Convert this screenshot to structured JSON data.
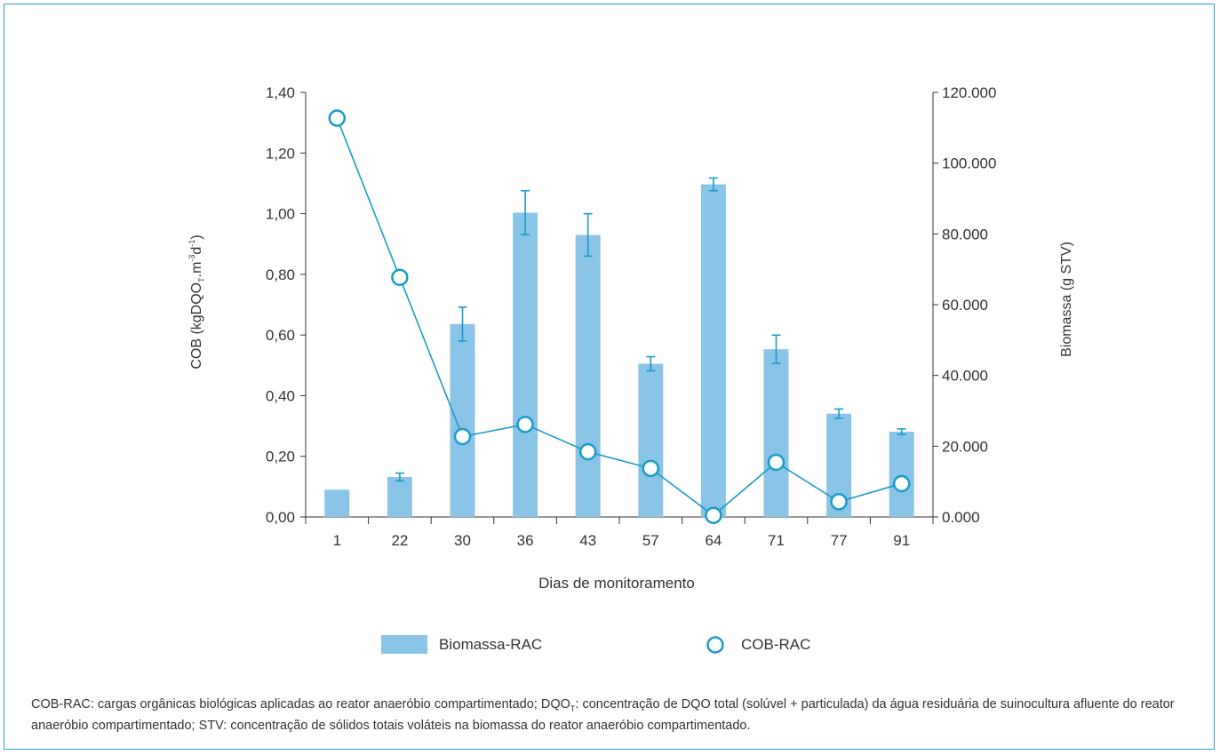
{
  "chart_data": {
    "type": "bar+line",
    "categories": [
      "1",
      "22",
      "30",
      "36",
      "43",
      "57",
      "64",
      "71",
      "77",
      "91"
    ],
    "xlabel": "Dias de monitoramento",
    "ylabel_left_main": "COB (kgDQO",
    "ylabel_left_sub": "T",
    "ylabel_left_mid": ".m",
    "ylabel_left_sup1": "-3",
    "ylabel_left_d": "d",
    "ylabel_left_sup2": "-1",
    "ylabel_left_close": ")",
    "ylabel_right": "Biomassa (g STV)",
    "left_axis": {
      "ylim": [
        0,
        1.4
      ],
      "ticks": [
        0,
        0.2,
        0.4,
        0.6,
        0.8,
        1.0,
        1.2,
        1.4
      ],
      "tick_labels": [
        "0,00",
        "0,20",
        "0,40",
        "0,60",
        "0,80",
        "1,00",
        "1,20",
        "1,40"
      ]
    },
    "right_axis": {
      "ylim": [
        0,
        120000
      ],
      "ticks": [
        0,
        20000,
        40000,
        60000,
        80000,
        100000,
        120000
      ],
      "tick_labels": [
        "0.000",
        "20.000",
        "40.000",
        "60.000",
        "80.000",
        "100.000",
        "120.000"
      ]
    },
    "series": [
      {
        "name": "Biomassa-RAC",
        "kind": "bar",
        "axis": "right",
        "color": "#8ac4e6",
        "values": [
          7700,
          11300,
          54500,
          86000,
          79700,
          43300,
          94000,
          47400,
          29200,
          24100
        ],
        "error": [
          null,
          1100,
          4800,
          6200,
          6000,
          2000,
          1800,
          4000,
          1300,
          800
        ]
      },
      {
        "name": "COB-RAC",
        "kind": "line",
        "axis": "left",
        "color": "#1a9cc9",
        "values": [
          1.315,
          0.79,
          0.265,
          0.305,
          0.215,
          0.16,
          0.005,
          0.18,
          0.05,
          0.11
        ]
      }
    ],
    "legend_position": "bottom"
  },
  "caption": {
    "part1": "COB-RAC: cargas orgânicas biológicas aplicadas ao reator anaeróbio compartimentado; DQO",
    "sub": "T",
    "part2": ": concentração de DQO total (solúvel + particulada) da água residuária de suinocultura afluente do reator anaeróbio compartimentado; STV: concentração de sólidos totais voláteis na biomassa do reator anaeróbio compartimentado."
  }
}
